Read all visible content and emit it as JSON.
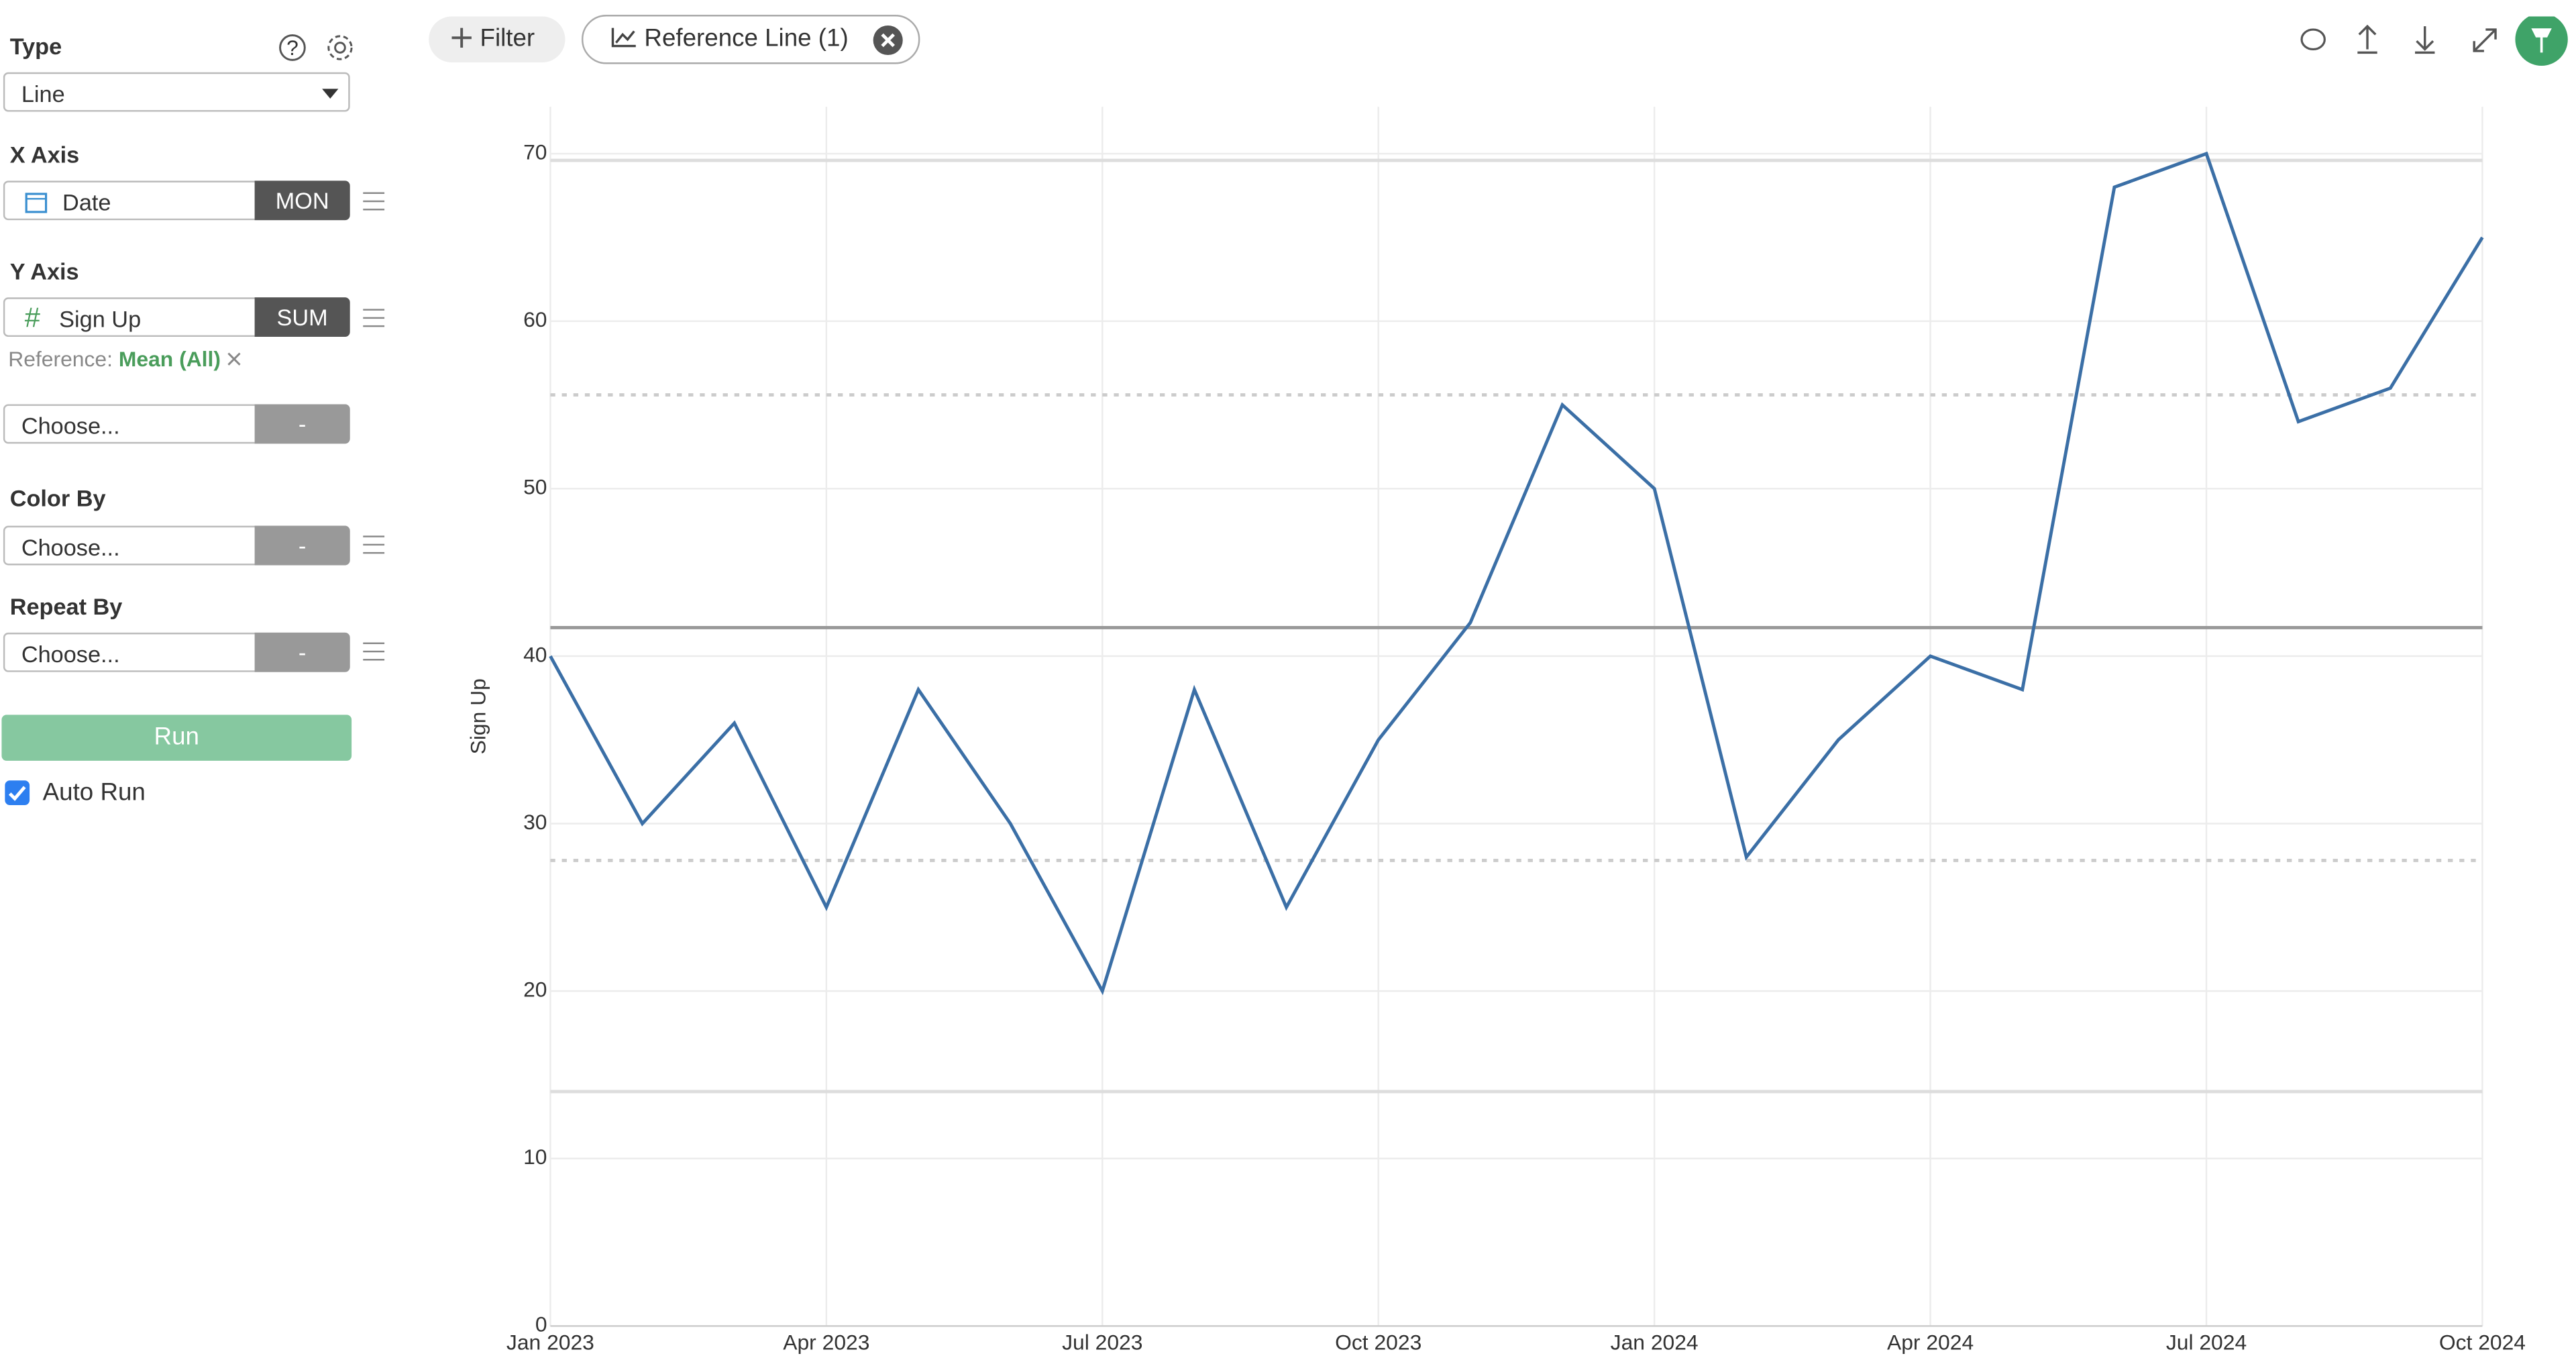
{
  "sidebar": {
    "type_label": "Type",
    "type_value": "Line",
    "x_axis_label": "X Axis",
    "x_axis_field": "Date",
    "x_axis_agg": "MON",
    "y_axis_label": "Y Axis",
    "y_axis_field": "Sign Up",
    "y_axis_agg": "SUM",
    "reference_label": "Reference:",
    "reference_value": "Mean (All)",
    "extra_field": "Choose...",
    "extra_agg": "-",
    "color_by_label": "Color By",
    "color_by_field": "Choose...",
    "color_by_agg": "-",
    "repeat_by_label": "Repeat By",
    "repeat_by_field": "Choose...",
    "repeat_by_agg": "-",
    "run_button": "Run",
    "auto_run_label": "Auto Run"
  },
  "toolbar": {
    "filter_button": "Filter",
    "reference_line_chip": "Reference Line (1)"
  },
  "chart_data": {
    "type": "line",
    "y_label": "Sign Up",
    "x": [
      "2023-01",
      "2023-02",
      "2023-03",
      "2023-04",
      "2023-05",
      "2023-06",
      "2023-07",
      "2023-08",
      "2023-09",
      "2023-10",
      "2023-11",
      "2023-12",
      "2024-01",
      "2024-02",
      "2024-03",
      "2024-04",
      "2024-05",
      "2024-06",
      "2024-07",
      "2024-08",
      "2024-09",
      "2024-10"
    ],
    "values": [
      40,
      30,
      36,
      25,
      38,
      30,
      20,
      38,
      25,
      35,
      42,
      55,
      50,
      28,
      35,
      40,
      38,
      68,
      70,
      54,
      56,
      65
    ],
    "color": "#3b6fa6",
    "xticks": [
      {
        "value": "2023-01",
        "label": "Jan 2023"
      },
      {
        "value": "2023-04",
        "label": "Apr 2023"
      },
      {
        "value": "2023-07",
        "label": "Jul 2023"
      },
      {
        "value": "2023-10",
        "label": "Oct 2023"
      },
      {
        "value": "2024-01",
        "label": "Jan 2024"
      },
      {
        "value": "2024-04",
        "label": "Apr 2024"
      },
      {
        "value": "2024-07",
        "label": "Jul 2024"
      },
      {
        "value": "2024-10",
        "label": "Oct 2024"
      }
    ],
    "ylim": [
      0,
      72.8
    ],
    "yticks": [
      0,
      10,
      20,
      30,
      40,
      50,
      60,
      70
    ],
    "grid": true,
    "reference_lines": [
      {
        "value": 41.7,
        "style": "solid",
        "color": "#999999"
      },
      {
        "value": 55.6,
        "style": "dotted",
        "color": "#cccccc"
      },
      {
        "value": 27.8,
        "style": "dotted",
        "color": "#cccccc"
      },
      {
        "value": 69.6,
        "style": "solid",
        "color": "#dddddd"
      },
      {
        "value": 14,
        "style": "solid",
        "color": "#dddddd"
      }
    ]
  }
}
